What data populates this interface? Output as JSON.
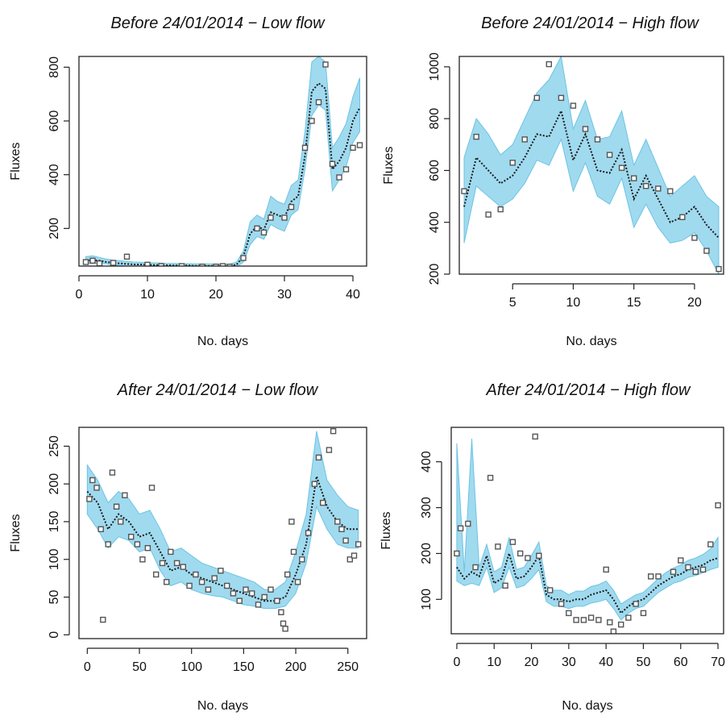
{
  "chart_data": [
    {
      "type": "line",
      "title": "Before 24/01/2014 − Low flow",
      "xlabel": "No. days",
      "ylabel": "Fluxes",
      "xlim": [
        0,
        42
      ],
      "ylim": [
        60,
        840
      ],
      "xticks": [
        0,
        10,
        20,
        30,
        40
      ],
      "yticks": [
        200,
        400,
        600,
        800
      ],
      "x": [
        1,
        2,
        3,
        4,
        5,
        6,
        7,
        8,
        9,
        10,
        11,
        12,
        13,
        14,
        15,
        16,
        17,
        18,
        19,
        20,
        21,
        22,
        23,
        24,
        25,
        26,
        27,
        28,
        29,
        30,
        31,
        32,
        33,
        34,
        35,
        36,
        37,
        38,
        39,
        40,
        41
      ],
      "series": [
        {
          "values": [
            80,
            82,
            80,
            75,
            72,
            70,
            68,
            66,
            66,
            65,
            64,
            63,
            63,
            62,
            62,
            62,
            61,
            61,
            61,
            61,
            60,
            60,
            65,
            95,
            180,
            210,
            195,
            260,
            250,
            240,
            300,
            320,
            470,
            710,
            740,
            720,
            420,
            450,
            500,
            600,
            650
          ]
        },
        {
          "values": [
            70,
            70,
            70,
            68,
            64,
            62,
            60,
            59,
            58,
            58,
            57,
            57,
            56,
            56,
            56,
            56,
            55,
            55,
            55,
            55,
            54,
            54,
            56,
            75,
            140,
            170,
            160,
            215,
            200,
            190,
            250,
            270,
            420,
            620,
            660,
            640,
            340,
            380,
            430,
            520,
            560
          ]
        },
        {
          "values": [
            95,
            98,
            92,
            86,
            82,
            80,
            78,
            75,
            74,
            73,
            72,
            71,
            70,
            70,
            69,
            69,
            68,
            68,
            68,
            68,
            67,
            67,
            75,
            115,
            225,
            250,
            235,
            320,
            300,
            290,
            360,
            380,
            560,
            820,
            840,
            820,
            500,
            540,
            590,
            690,
            760
          ]
        }
      ],
      "observations": {
        "x": [
          1,
          2,
          3,
          5,
          7,
          10,
          12,
          15,
          18,
          20,
          21,
          22,
          24,
          26,
          27,
          28,
          30,
          31,
          33,
          34,
          35,
          36,
          37,
          38,
          39,
          40,
          41
        ],
        "y": [
          75,
          80,
          70,
          72,
          95,
          65,
          60,
          60,
          58,
          58,
          60,
          58,
          90,
          200,
          185,
          240,
          240,
          280,
          500,
          600,
          670,
          810,
          440,
          390,
          420,
          500,
          510
        ]
      }
    },
    {
      "type": "line",
      "title": "Before 24/01/2014 − High flow",
      "xlabel": "No. days",
      "ylabel": "Fluxes",
      "xlim": [
        0.6,
        22.4
      ],
      "ylim": [
        200,
        1040
      ],
      "xticks": [
        5,
        10,
        15,
        20
      ],
      "yticks": [
        200,
        400,
        600,
        800,
        1000
      ],
      "x": [
        1,
        2,
        3,
        4,
        5,
        6,
        7,
        8,
        9,
        10,
        11,
        12,
        13,
        14,
        15,
        16,
        17,
        18,
        19,
        20,
        21,
        22
      ],
      "series": [
        {
          "values": [
            460,
            650,
            600,
            550,
            580,
            650,
            740,
            730,
            830,
            640,
            740,
            600,
            590,
            680,
            490,
            580,
            490,
            400,
            420,
            460,
            390,
            340
          ]
        },
        {
          "values": [
            320,
            540,
            500,
            460,
            490,
            550,
            640,
            620,
            720,
            520,
            630,
            500,
            470,
            570,
            380,
            470,
            380,
            320,
            330,
            360,
            290,
            200
          ]
        },
        {
          "values": [
            650,
            800,
            740,
            660,
            700,
            800,
            900,
            950,
            1040,
            760,
            870,
            720,
            730,
            830,
            620,
            720,
            610,
            500,
            540,
            580,
            500,
            460
          ]
        }
      ],
      "observations": {
        "x": [
          1,
          2,
          3,
          4,
          5,
          6,
          7,
          8,
          9,
          10,
          11,
          12,
          13,
          14,
          15,
          16,
          17,
          18,
          19,
          20,
          21,
          22
        ],
        "y": [
          520,
          730,
          430,
          450,
          630,
          720,
          880,
          1010,
          880,
          850,
          760,
          720,
          660,
          610,
          570,
          540,
          530,
          520,
          420,
          340,
          290,
          220
        ]
      }
    },
    {
      "type": "line",
      "title": "After 24/01/2014 − Low flow",
      "xlabel": "No. days",
      "ylabel": "Fluxes",
      "xlim": [
        -8,
        268
      ],
      "ylim": [
        -5,
        275
      ],
      "xticks": [
        0,
        50,
        100,
        150,
        200,
        250
      ],
      "yticks": [
        0,
        50,
        100,
        150,
        200,
        250
      ],
      "x": [
        0,
        10,
        20,
        30,
        40,
        50,
        60,
        70,
        80,
        90,
        100,
        110,
        120,
        130,
        140,
        150,
        160,
        170,
        180,
        190,
        200,
        210,
        220,
        230,
        240,
        250,
        260
      ],
      "series": [
        {
          "values": [
            190,
            175,
            140,
            160,
            150,
            130,
            135,
            110,
            85,
            90,
            80,
            75,
            70,
            65,
            60,
            55,
            50,
            45,
            45,
            50,
            80,
            120,
            210,
            170,
            150,
            140,
            140
          ]
        },
        {
          "values": [
            160,
            140,
            115,
            130,
            125,
            110,
            115,
            85,
            65,
            70,
            60,
            55,
            52,
            50,
            45,
            40,
            38,
            35,
            35,
            38,
            55,
            95,
            170,
            140,
            120,
            115,
            115
          ]
        },
        {
          "values": [
            225,
            205,
            175,
            190,
            180,
            160,
            165,
            140,
            110,
            115,
            105,
            95,
            90,
            85,
            80,
            75,
            70,
            60,
            60,
            70,
            110,
            160,
            270,
            205,
            185,
            170,
            165
          ]
        }
      ],
      "observations": {
        "x": [
          2,
          5,
          9,
          13,
          15,
          20,
          24,
          28,
          32,
          36,
          42,
          48,
          53,
          58,
          62,
          66,
          72,
          76,
          80,
          86,
          92,
          98,
          104,
          110,
          116,
          122,
          128,
          134,
          140,
          146,
          152,
          158,
          164,
          170,
          176,
          182,
          186,
          188,
          190,
          192,
          196,
          198,
          202,
          206,
          212,
          218,
          222,
          226,
          232,
          236,
          240,
          244,
          248,
          252,
          256,
          260
        ],
        "y": [
          180,
          205,
          195,
          140,
          20,
          120,
          215,
          170,
          150,
          185,
          130,
          120,
          100,
          115,
          195,
          80,
          95,
          70,
          110,
          95,
          90,
          65,
          80,
          70,
          60,
          75,
          85,
          65,
          55,
          45,
          60,
          55,
          40,
          50,
          60,
          45,
          30,
          15,
          8,
          80,
          150,
          110,
          70,
          100,
          135,
          200,
          235,
          175,
          245,
          270,
          150,
          140,
          125,
          100,
          105,
          120
        ]
      }
    },
    {
      "type": "line",
      "title": "After 24/01/2014 − High flow",
      "xlabel": "No. days",
      "ylabel": "Fluxes",
      "xlim": [
        -1.5,
        71.5
      ],
      "ylim": [
        25,
        475
      ],
      "xticks": [
        0,
        10,
        20,
        30,
        40,
        50,
        60,
        70
      ],
      "yticks": [
        100,
        200,
        300,
        400
      ],
      "x": [
        0,
        2,
        4,
        6,
        8,
        10,
        12,
        14,
        16,
        18,
        20,
        22,
        24,
        26,
        28,
        30,
        32,
        34,
        36,
        38,
        40,
        42,
        44,
        46,
        48,
        50,
        52,
        54,
        56,
        58,
        60,
        62,
        64,
        66,
        68,
        70
      ],
      "series": [
        {
          "values": [
            170,
            145,
            160,
            150,
            195,
            135,
            145,
            200,
            145,
            150,
            170,
            195,
            110,
            100,
            100,
            95,
            100,
            100,
            110,
            115,
            120,
            100,
            70,
            85,
            95,
            100,
            115,
            130,
            140,
            150,
            155,
            165,
            170,
            175,
            185,
            190
          ]
        },
        {
          "values": [
            140,
            130,
            135,
            130,
            170,
            115,
            125,
            170,
            125,
            130,
            145,
            165,
            95,
            85,
            85,
            80,
            85,
            85,
            92,
            95,
            100,
            80,
            55,
            70,
            80,
            85,
            100,
            115,
            125,
            135,
            140,
            148,
            152,
            158,
            165,
            170
          ]
        },
        {
          "values": [
            440,
            160,
            450,
            170,
            220,
            160,
            170,
            235,
            165,
            170,
            195,
            225,
            130,
            120,
            120,
            110,
            118,
            118,
            128,
            132,
            140,
            120,
            90,
            100,
            110,
            115,
            130,
            145,
            158,
            168,
            175,
            185,
            190,
            198,
            210,
            235
          ]
        }
      ],
      "observations": {
        "x": [
          0,
          1,
          3,
          5,
          9,
          11,
          13,
          15,
          17,
          19,
          21,
          22,
          25,
          28,
          30,
          32,
          34,
          36,
          38,
          40,
          41,
          42,
          44,
          46,
          48,
          50,
          52,
          54,
          58,
          60,
          62,
          64,
          66,
          68,
          70
        ],
        "y": [
          200,
          255,
          265,
          170,
          365,
          215,
          130,
          225,
          200,
          190,
          455,
          195,
          120,
          90,
          70,
          55,
          55,
          60,
          55,
          165,
          50,
          30,
          45,
          60,
          90,
          70,
          150,
          150,
          160,
          185,
          170,
          160,
          165,
          220,
          305
        ]
      }
    }
  ]
}
